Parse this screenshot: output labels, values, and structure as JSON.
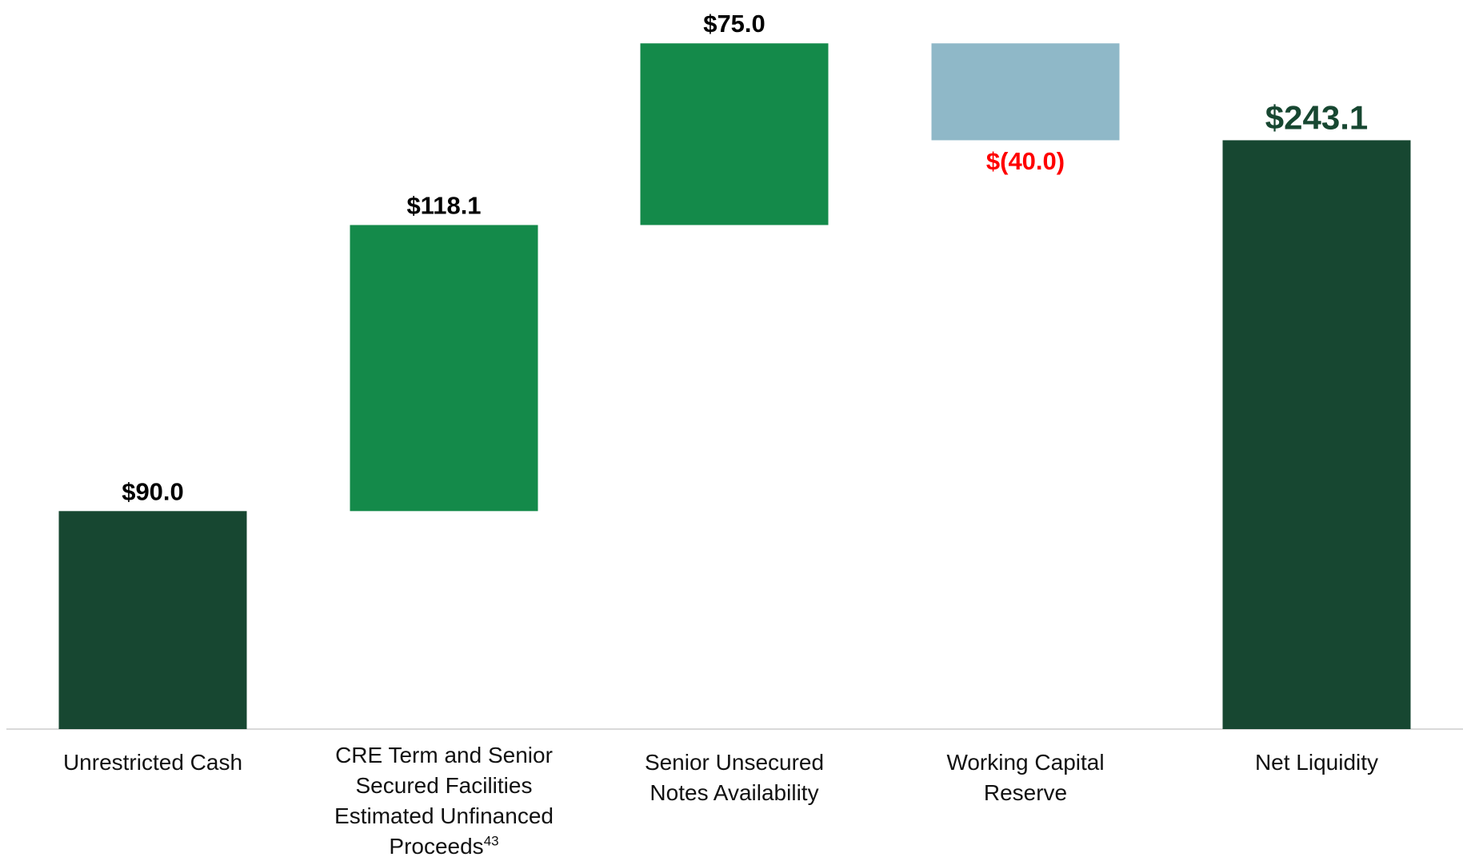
{
  "chart_data": {
    "type": "waterfall",
    "categories": [
      "Unrestricted Cash",
      "CRE Term and Senior Secured Facilities Estimated Unfinanced Proceeds",
      "Senior Unsecured Notes Availability",
      "Working Capital Reserve",
      "Net Liquidity"
    ],
    "category_superscripts": [
      null,
      "43",
      null,
      null,
      null
    ],
    "values": [
      90.0,
      118.1,
      75.0,
      -40.0,
      243.1
    ],
    "value_labels": [
      "$90.0",
      "$118.1",
      "$75.0",
      "$(40.0)",
      "$243.1"
    ],
    "bar_kinds": [
      "total",
      "change",
      "change",
      "change",
      "total"
    ],
    "colors": {
      "total": "#174731",
      "increase": "#148a4a",
      "decrease": "#8fb8c8"
    },
    "label_colors": [
      "#000000",
      "#000000",
      "#000000",
      "#ff0000",
      "#174731"
    ],
    "ylim": [
      0,
      301
    ]
  }
}
